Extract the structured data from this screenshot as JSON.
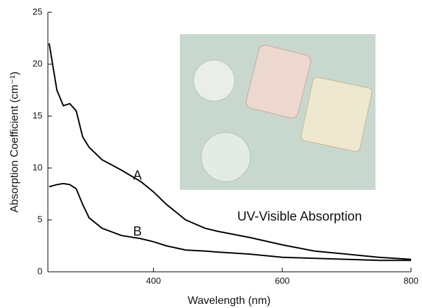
{
  "chart_data": {
    "type": "line",
    "x_label": "Wavelength (nm)",
    "y_label": "Absorption Coefficient (cm⁻¹)",
    "x": [
      238,
      250,
      260,
      270,
      280,
      290,
      300,
      320,
      350,
      380,
      400,
      420,
      450,
      480,
      500,
      550,
      600,
      650,
      700,
      750,
      800
    ],
    "series": [
      {
        "name": "A",
        "color": "#000000",
        "values": [
          22,
          17.5,
          16,
          16.2,
          15.5,
          13,
          12,
          10.8,
          9.8,
          8.7,
          7.7,
          6.5,
          5,
          4.2,
          3.9,
          3.3,
          2.6,
          2,
          1.7,
          1.4,
          1.2
        ]
      },
      {
        "name": "B",
        "color": "#000000",
        "values": [
          8.2,
          8.4,
          8.5,
          8.4,
          8,
          6.5,
          5.2,
          4.2,
          3.5,
          3.2,
          2.9,
          2.5,
          2.1,
          2,
          1.9,
          1.7,
          1.4,
          1.3,
          1.2,
          1.1,
          1.1
        ]
      }
    ],
    "annotations": [
      "UV-Visible Absorption"
    ],
    "xlim": [
      236,
      800
    ],
    "xticks": [
      400,
      600,
      800
    ],
    "ylim": [
      0,
      25
    ],
    "yticks": [
      0,
      5,
      10,
      15,
      20,
      25
    ],
    "grid": false
  }
}
